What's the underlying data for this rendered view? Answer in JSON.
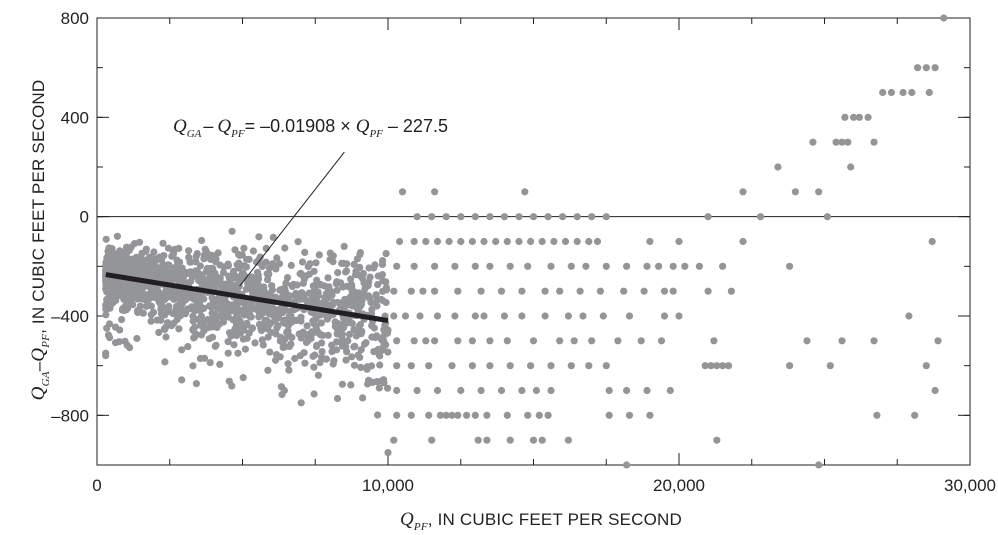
{
  "chart_data": {
    "type": "scatter",
    "title": "",
    "xlabel": {
      "symbol": "Q",
      "subscript": "PF",
      "rest": ", IN CUBIC FEET PER SECOND"
    },
    "ylabel": {
      "symbol1": "Q",
      "subscript1": "GA",
      "minus": "–",
      "symbol2": "Q",
      "subscript2": "PF",
      "rest": ", IN CUBIC FEET PER SECOND"
    },
    "xlim": [
      0,
      30000
    ],
    "ylim": [
      -1000,
      800
    ],
    "xticks": [
      0,
      10000,
      20000,
      30000
    ],
    "xtick_labels": [
      "0",
      "10,000",
      "20,000",
      "30,000"
    ],
    "yticks": [
      -800,
      -400,
      0,
      400,
      800
    ],
    "ytick_labels": [
      "–800",
      "–400",
      "0",
      "400",
      "800"
    ],
    "x_minor_step": 2500,
    "y_minor_step": 200,
    "zero_line": 0,
    "grid": false,
    "legend": "none",
    "marker_color": "#939598",
    "line_color": "#231f20",
    "regression": {
      "slope": -0.01908,
      "intercept": -227.5,
      "x_start": 300,
      "x_end": 10000,
      "equation": {
        "q1": "Q",
        "sub1": "GA",
        "minus": "–",
        "q2": "Q",
        "sub2": "PF",
        "eq": "= –0.01908 × ",
        "q3": "Q",
        "sub3": "PF",
        "tail": " – 227.5"
      },
      "pointer_from": [
        8500,
        260
      ],
      "pointer_to": [
        4900,
        -280
      ]
    },
    "dense_cluster": {
      "description_note": "",
      "x_range": [
        300,
        10000
      ],
      "count": 1500,
      "seed": 7
    },
    "points": [
      [
        10500,
        100
      ],
      [
        11000,
        0
      ],
      [
        11500,
        0
      ],
      [
        12000,
        0
      ],
      [
        12500,
        0
      ],
      [
        13000,
        0
      ],
      [
        13500,
        0
      ],
      [
        14000,
        0
      ],
      [
        14500,
        0
      ],
      [
        15000,
        0
      ],
      [
        15500,
        0
      ],
      [
        16000,
        0
      ],
      [
        16500,
        0
      ],
      [
        17000,
        0
      ],
      [
        17500,
        0
      ],
      [
        11600,
        100
      ],
      [
        14700,
        100
      ],
      [
        10400,
        -100
      ],
      [
        10900,
        -100
      ],
      [
        11300,
        -100
      ],
      [
        11700,
        -100
      ],
      [
        12100,
        -100
      ],
      [
        12500,
        -100
      ],
      [
        12900,
        -100
      ],
      [
        13300,
        -100
      ],
      [
        13700,
        -100
      ],
      [
        14100,
        -100
      ],
      [
        14500,
        -100
      ],
      [
        14900,
        -100
      ],
      [
        15300,
        -100
      ],
      [
        15700,
        -100
      ],
      [
        16100,
        -100
      ],
      [
        16500,
        -100
      ],
      [
        16900,
        -100
      ],
      [
        17200,
        -100
      ],
      [
        19000,
        -100
      ],
      [
        20000,
        -100
      ],
      [
        21000,
        0
      ],
      [
        22200,
        -100
      ],
      [
        28700,
        -100
      ],
      [
        10300,
        -200
      ],
      [
        10900,
        -200
      ],
      [
        11600,
        -200
      ],
      [
        12300,
        -200
      ],
      [
        13000,
        -200
      ],
      [
        13500,
        -200
      ],
      [
        14200,
        -200
      ],
      [
        14800,
        -200
      ],
      [
        15600,
        -200
      ],
      [
        16300,
        -200
      ],
      [
        16800,
        -200
      ],
      [
        17500,
        -200
      ],
      [
        18200,
        -200
      ],
      [
        18900,
        -200
      ],
      [
        19300,
        -200
      ],
      [
        19800,
        -200
      ],
      [
        20200,
        -200
      ],
      [
        20700,
        -200
      ],
      [
        21500,
        -200
      ],
      [
        23800,
        -200
      ],
      [
        10200,
        -300
      ],
      [
        10800,
        -300
      ],
      [
        11200,
        -300
      ],
      [
        11600,
        -300
      ],
      [
        12400,
        -300
      ],
      [
        13200,
        -300
      ],
      [
        13900,
        -300
      ],
      [
        14600,
        -300
      ],
      [
        15400,
        -300
      ],
      [
        15900,
        -300
      ],
      [
        16600,
        -300
      ],
      [
        17300,
        -300
      ],
      [
        18100,
        -300
      ],
      [
        18800,
        -300
      ],
      [
        19500,
        -300
      ],
      [
        19800,
        -300
      ],
      [
        21000,
        -300
      ],
      [
        21800,
        -300
      ],
      [
        10200,
        -400
      ],
      [
        10600,
        -400
      ],
      [
        11100,
        -400
      ],
      [
        11700,
        -400
      ],
      [
        12300,
        -400
      ],
      [
        13000,
        -400
      ],
      [
        13300,
        -400
      ],
      [
        14000,
        -400
      ],
      [
        14600,
        -400
      ],
      [
        15400,
        -400
      ],
      [
        16200,
        -400
      ],
      [
        16700,
        -400
      ],
      [
        17400,
        -400
      ],
      [
        18300,
        -400
      ],
      [
        19500,
        -400
      ],
      [
        20000,
        -400
      ],
      [
        27900,
        -400
      ],
      [
        10300,
        -500
      ],
      [
        10900,
        -500
      ],
      [
        11300,
        -500
      ],
      [
        11600,
        -500
      ],
      [
        12400,
        -500
      ],
      [
        12900,
        -500
      ],
      [
        13500,
        -500
      ],
      [
        14100,
        -500
      ],
      [
        15000,
        -500
      ],
      [
        15900,
        -500
      ],
      [
        16400,
        -500
      ],
      [
        17000,
        -500
      ],
      [
        17900,
        -500
      ],
      [
        18700,
        -500
      ],
      [
        19400,
        -500
      ],
      [
        21200,
        -500
      ],
      [
        24400,
        -500
      ],
      [
        25600,
        -500
      ],
      [
        26700,
        -500
      ],
      [
        28900,
        -500
      ],
      [
        10300,
        -600
      ],
      [
        10800,
        -600
      ],
      [
        11400,
        -600
      ],
      [
        12200,
        -600
      ],
      [
        12900,
        -600
      ],
      [
        13500,
        -600
      ],
      [
        14200,
        -600
      ],
      [
        14900,
        -600
      ],
      [
        15600,
        -600
      ],
      [
        16300,
        -600
      ],
      [
        16900,
        -600
      ],
      [
        17500,
        -600
      ],
      [
        20900,
        -600
      ],
      [
        21100,
        -600
      ],
      [
        21300,
        -600
      ],
      [
        21500,
        -600
      ],
      [
        21700,
        -600
      ],
      [
        23800,
        -600
      ],
      [
        25200,
        -600
      ],
      [
        28500,
        -600
      ],
      [
        10300,
        -700
      ],
      [
        11000,
        -700
      ],
      [
        11700,
        -700
      ],
      [
        12500,
        -700
      ],
      [
        13200,
        -700
      ],
      [
        13900,
        -700
      ],
      [
        14600,
        -700
      ],
      [
        15100,
        -700
      ],
      [
        15600,
        -700
      ],
      [
        17600,
        -700
      ],
      [
        18200,
        -700
      ],
      [
        18900,
        -700
      ],
      [
        19700,
        -700
      ],
      [
        28800,
        -700
      ],
      [
        10300,
        -800
      ],
      [
        10800,
        -800
      ],
      [
        11400,
        -800
      ],
      [
        11800,
        -800
      ],
      [
        12000,
        -800
      ],
      [
        12200,
        -800
      ],
      [
        12400,
        -800
      ],
      [
        12700,
        -800
      ],
      [
        13000,
        -800
      ],
      [
        13400,
        -800
      ],
      [
        14100,
        -800
      ],
      [
        14800,
        -800
      ],
      [
        15200,
        -800
      ],
      [
        15500,
        -800
      ],
      [
        17600,
        -800
      ],
      [
        18300,
        -800
      ],
      [
        19000,
        -800
      ],
      [
        26800,
        -800
      ],
      [
        28100,
        -800
      ],
      [
        10200,
        -900
      ],
      [
        11500,
        -900
      ],
      [
        13100,
        -900
      ],
      [
        13400,
        -900
      ],
      [
        14200,
        -900
      ],
      [
        15000,
        -900
      ],
      [
        15300,
        -900
      ],
      [
        16200,
        -900
      ],
      [
        21300,
        -900
      ],
      [
        10000,
        -950
      ],
      [
        18200,
        -1000
      ],
      [
        24800,
        -1000
      ],
      [
        22200,
        100
      ],
      [
        23400,
        200
      ],
      [
        24000,
        100
      ],
      [
        24600,
        300
      ],
      [
        24800,
        100
      ],
      [
        25100,
        0
      ],
      [
        25400,
        300
      ],
      [
        25600,
        300
      ],
      [
        25700,
        400
      ],
      [
        25800,
        300
      ],
      [
        25900,
        200
      ],
      [
        26000,
        400
      ],
      [
        26200,
        400
      ],
      [
        26500,
        400
      ],
      [
        26700,
        300
      ],
      [
        27000,
        500
      ],
      [
        27300,
        500
      ],
      [
        27700,
        500
      ],
      [
        28000,
        500
      ],
      [
        28200,
        600
      ],
      [
        28500,
        600
      ],
      [
        28800,
        600
      ],
      [
        29100,
        800
      ],
      [
        28600,
        500
      ],
      [
        22800,
        0
      ]
    ]
  }
}
